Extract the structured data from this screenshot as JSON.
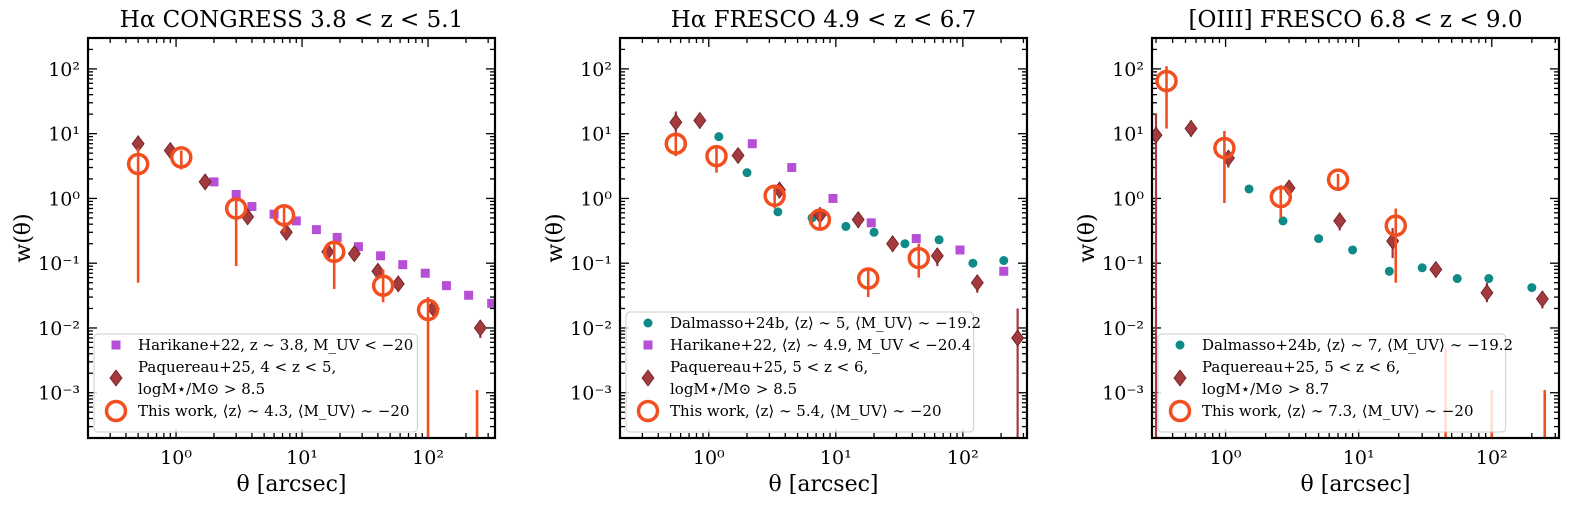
{
  "colors": {
    "harikane": "#b64fd6",
    "paquereau": "#a23a3e",
    "thiswork": "#f24f21",
    "dalmasso": "#0e8a88"
  },
  "chart_data": [
    {
      "type": "scatter",
      "title": "Hα CONGRESS 3.8 < z < 5.1",
      "xlabel": "θ [arcsec]",
      "ylabel": "w(θ)",
      "xscale": "log",
      "yscale": "log",
      "xlim": [
        0.2,
        340
      ],
      "ylim": [
        0.0002,
        300
      ],
      "xticks": [
        {
          "v": 1,
          "label": "10⁰"
        },
        {
          "v": 10,
          "label": "10¹"
        },
        {
          "v": 100,
          "label": "10²"
        }
      ],
      "yticks": [
        {
          "v": 0.001,
          "label": "10⁻³"
        },
        {
          "v": 0.01,
          "label": "10⁻²"
        },
        {
          "v": 0.1,
          "label": "10⁻¹"
        },
        {
          "v": 1,
          "label": "10⁰"
        },
        {
          "v": 10,
          "label": "10¹"
        },
        {
          "v": 100,
          "label": "10²"
        }
      ],
      "series": [
        {
          "name": "Harikane+22, z ∼ 3.8, M_UV < −20",
          "marker": "square",
          "color_key": "harikane",
          "x": [
            2.0,
            3.0,
            4.0,
            6.0,
            9.0,
            13.0,
            19.0,
            28.0,
            42.0,
            63.0,
            95.0,
            140.0,
            210.0,
            320.0
          ],
          "y": [
            1.8,
            1.15,
            0.75,
            0.57,
            0.45,
            0.33,
            0.25,
            0.18,
            0.13,
            0.095,
            0.07,
            0.045,
            0.032,
            0.024
          ]
        },
        {
          "name": "Paquereau+25, 4 < z < 5, logM⋆/M⊙ > 8.5",
          "marker": "diamond",
          "color_key": "paquereau",
          "x": [
            0.5,
            0.9,
            1.7,
            3.7,
            7.5,
            16,
            26,
            40,
            58,
            110,
            260
          ],
          "y": [
            7.0,
            5.5,
            1.8,
            0.52,
            0.3,
            0.15,
            0.14,
            0.075,
            0.048,
            0.02,
            0.01
          ],
          "ylo": [
            5.8,
            4.6,
            1.5,
            0.42,
            0.25,
            0.12,
            0.11,
            0.06,
            0.038,
            0.016,
            0.007
          ],
          "yhi": [
            8.2,
            6.4,
            2.1,
            0.64,
            0.36,
            0.18,
            0.17,
            0.09,
            0.058,
            0.026,
            0.013
          ]
        },
        {
          "name": "This work, ⟨z⟩ ∼ 4.3, ⟨M_UV⟩ ∼ −20",
          "marker": "ring",
          "color_key": "thiswork",
          "x": [
            0.5,
            1.1,
            3.0,
            7.2,
            18,
            44,
            100
          ],
          "y": [
            3.4,
            4.3,
            0.7,
            0.55,
            0.15,
            0.045,
            0.019
          ],
          "ylo": [
            0.05,
            2.8,
            0.09,
            0.3,
            0.04,
            0.025,
            0.0002
          ],
          "yhi": [
            6.0,
            5.5,
            0.95,
            0.8,
            0.2,
            0.08,
            0.03
          ]
        },
        {
          "name": "",
          "marker": "errorbar-only",
          "color_key": "thiswork",
          "x": [
            245
          ],
          "y": [
            0.0004
          ],
          "ylo": [
            0.0002
          ],
          "yhi": [
            0.0011
          ]
        }
      ],
      "legend": {
        "position": "lower-left",
        "entries": [
          {
            "marker": "square",
            "color_key": "harikane",
            "lines": [
              "Harikane+22, z ∼ 3.8, M_UV < −20"
            ]
          },
          {
            "marker": "diamond",
            "color_key": "paquereau",
            "lines": [
              "Paquereau+25, 4 < z < 5,",
              "logM⋆/M⊙ > 8.5"
            ]
          },
          {
            "marker": "ring",
            "color_key": "thiswork",
            "lines": [
              "This work, ⟨z⟩ ∼ 4.3, ⟨M_UV⟩ ∼ −20"
            ]
          }
        ]
      }
    },
    {
      "type": "scatter",
      "title": "Hα FRESCO 4.9 < z < 6.7",
      "xlabel": "θ [arcsec]",
      "ylabel": "w(θ)",
      "xscale": "log",
      "yscale": "log",
      "xlim": [
        0.2,
        320
      ],
      "ylim": [
        0.0002,
        300
      ],
      "xticks": [
        {
          "v": 1,
          "label": "10⁰"
        },
        {
          "v": 10,
          "label": "10¹"
        },
        {
          "v": 100,
          "label": "10²"
        }
      ],
      "yticks": [
        {
          "v": 0.001,
          "label": "10⁻³"
        },
        {
          "v": 0.01,
          "label": "10⁻²"
        },
        {
          "v": 0.1,
          "label": "10⁻¹"
        },
        {
          "v": 1,
          "label": "10⁰"
        },
        {
          "v": 10,
          "label": "10¹"
        },
        {
          "v": 100,
          "label": "10²"
        }
      ],
      "series": [
        {
          "name": "Dalmasso+24b, ⟨z⟩ ∼ 5, ⟨M_UV⟩ ∼ −19.2",
          "marker": "circle",
          "color_key": "dalmasso",
          "x": [
            1.2,
            2.0,
            3.5,
            6.5,
            12,
            20,
            35,
            65,
            120,
            210
          ],
          "y": [
            9.0,
            2.5,
            0.62,
            0.5,
            0.37,
            0.3,
            0.2,
            0.23,
            0.1,
            0.11
          ]
        },
        {
          "name": "Harikane+22, ⟨z⟩ ∼ 4.9, M_UV < −20.4",
          "marker": "square",
          "color_key": "harikane",
          "x": [
            2.2,
            4.5,
            9.5,
            19,
            43,
            95,
            210
          ],
          "y": [
            7.0,
            3.0,
            1.0,
            0.42,
            0.24,
            0.16,
            0.075
          ]
        },
        {
          "name": "Paquereau+25, 5 < z < 6, logM⋆/M⊙ > 8.5",
          "marker": "diamond",
          "color_key": "paquereau",
          "x": [
            0.55,
            0.85,
            1.7,
            3.6,
            7.5,
            15,
            28,
            63,
            130,
            270
          ],
          "y": [
            15,
            16,
            4.6,
            1.35,
            0.55,
            0.47,
            0.2,
            0.13,
            0.05,
            0.007
          ],
          "ylo": [
            10,
            12,
            3.5,
            1.0,
            0.4,
            0.35,
            0.15,
            0.09,
            0.035,
            0.0002
          ],
          "yhi": [
            22,
            20,
            5.8,
            1.7,
            0.7,
            0.6,
            0.25,
            0.17,
            0.065,
            0.02
          ]
        },
        {
          "name": "This work, ⟨z⟩ ∼ 5.4, ⟨M_UV⟩ ∼ −20",
          "marker": "ring",
          "color_key": "thiswork",
          "x": [
            0.55,
            1.15,
            3.3,
            7.5,
            18,
            45
          ],
          "y": [
            7.0,
            4.5,
            1.1,
            0.47,
            0.058,
            0.12
          ],
          "ylo": [
            4.5,
            2.5,
            0.7,
            0.35,
            0.03,
            0.06
          ],
          "yhi": [
            9.5,
            6.5,
            1.5,
            0.6,
            0.085,
            0.2
          ]
        }
      ],
      "legend": {
        "position": "lower-left",
        "entries": [
          {
            "marker": "circle",
            "color_key": "dalmasso",
            "lines": [
              "Dalmasso+24b, ⟨z⟩ ∼ 5, ⟨M_UV⟩ ∼ −19.2"
            ]
          },
          {
            "marker": "square",
            "color_key": "harikane",
            "lines": [
              "Harikane+22, ⟨z⟩ ∼ 4.9, M_UV < −20.4"
            ]
          },
          {
            "marker": "diamond",
            "color_key": "paquereau",
            "lines": [
              "Paquereau+25, 5 < z < 6,",
              "logM⋆/M⊙ > 8.5"
            ]
          },
          {
            "marker": "ring",
            "color_key": "thiswork",
            "lines": [
              "This work, ⟨z⟩ ∼ 5.4, ⟨M_UV⟩ ∼ −20"
            ]
          }
        ]
      }
    },
    {
      "type": "scatter",
      "title": "[OIII] FRESCO 6.8 < z < 9.0",
      "xlabel": "θ [arcsec]",
      "ylabel": "w(θ)",
      "xscale": "log",
      "yscale": "log",
      "xlim": [
        0.28,
        320
      ],
      "ylim": [
        0.0002,
        300
      ],
      "xticks": [
        {
          "v": 1,
          "label": "10⁰"
        },
        {
          "v": 10,
          "label": "10¹"
        },
        {
          "v": 100,
          "label": "10²"
        }
      ],
      "yticks": [
        {
          "v": 0.001,
          "label": "10⁻³"
        },
        {
          "v": 0.01,
          "label": "10⁻²"
        },
        {
          "v": 0.1,
          "label": "10⁻¹"
        },
        {
          "v": 1,
          "label": "10⁰"
        },
        {
          "v": 10,
          "label": "10¹"
        },
        {
          "v": 100,
          "label": "10²"
        }
      ],
      "series": [
        {
          "name": "Dalmasso+24b, ⟨z⟩ ∼ 7, ⟨M_UV⟩ ∼ −19.2",
          "marker": "circle",
          "color_key": "dalmasso",
          "x": [
            1.5,
            2.7,
            5.0,
            9.0,
            17,
            30,
            55,
            95,
            200
          ],
          "y": [
            1.4,
            0.45,
            0.24,
            0.16,
            0.075,
            0.085,
            0.058,
            0.058,
            0.042
          ]
        },
        {
          "name": "Paquereau+25, 5 < z < 6, logM⋆/M⊙ > 8.7",
          "marker": "diamond",
          "color_key": "paquereau",
          "x": [
            0.3,
            0.55,
            1.05,
            3.0,
            7.2,
            18,
            38,
            92,
            240
          ],
          "y": [
            9.5,
            12,
            4.2,
            1.45,
            0.45,
            0.22,
            0.08,
            0.035,
            0.028
          ],
          "ylo": [
            0.0002,
            9,
            3.0,
            1.1,
            0.32,
            0.12,
            0.06,
            0.025,
            0.02
          ],
          "yhi": [
            20,
            16,
            5.5,
            1.8,
            0.6,
            0.35,
            0.1,
            0.05,
            0.037
          ]
        },
        {
          "name": "This work, ⟨z⟩ ∼ 7.3, ⟨M_UV⟩ ∼ −20",
          "marker": "ring",
          "color_key": "thiswork",
          "x": [
            0.36,
            0.98,
            2.6,
            7.0,
            19
          ],
          "y": [
            65,
            6.0,
            1.05,
            1.95,
            0.38
          ],
          "ylo": [
            12,
            0.85,
            0.5,
            1.3,
            0.05
          ],
          "yhi": [
            110,
            11,
            1.6,
            2.4,
            0.7
          ]
        },
        {
          "name": "",
          "marker": "errorbar-only",
          "color_key": "thiswork",
          "x": [
            45,
            100,
            250
          ],
          "y": [
            0.0012,
            0.0004,
            0.0004
          ],
          "ylo": [
            0.0002,
            0.0002,
            0.0002
          ],
          "yhi": [
            0.005,
            0.0011,
            0.0011
          ]
        }
      ],
      "legend": {
        "position": "lower-left",
        "entries": [
          {
            "marker": "circle",
            "color_key": "dalmasso",
            "lines": [
              "Dalmasso+24b, ⟨z⟩ ∼ 7, ⟨M_UV⟩ ∼ −19.2"
            ]
          },
          {
            "marker": "diamond",
            "color_key": "paquereau",
            "lines": [
              "Paquereau+25, 5 < z < 6,",
              "logM⋆/M⊙ > 8.7"
            ]
          },
          {
            "marker": "ring",
            "color_key": "thiswork",
            "lines": [
              "This work, ⟨z⟩ ∼ 7.3, ⟨M_UV⟩ ∼ −20"
            ]
          }
        ]
      }
    }
  ]
}
